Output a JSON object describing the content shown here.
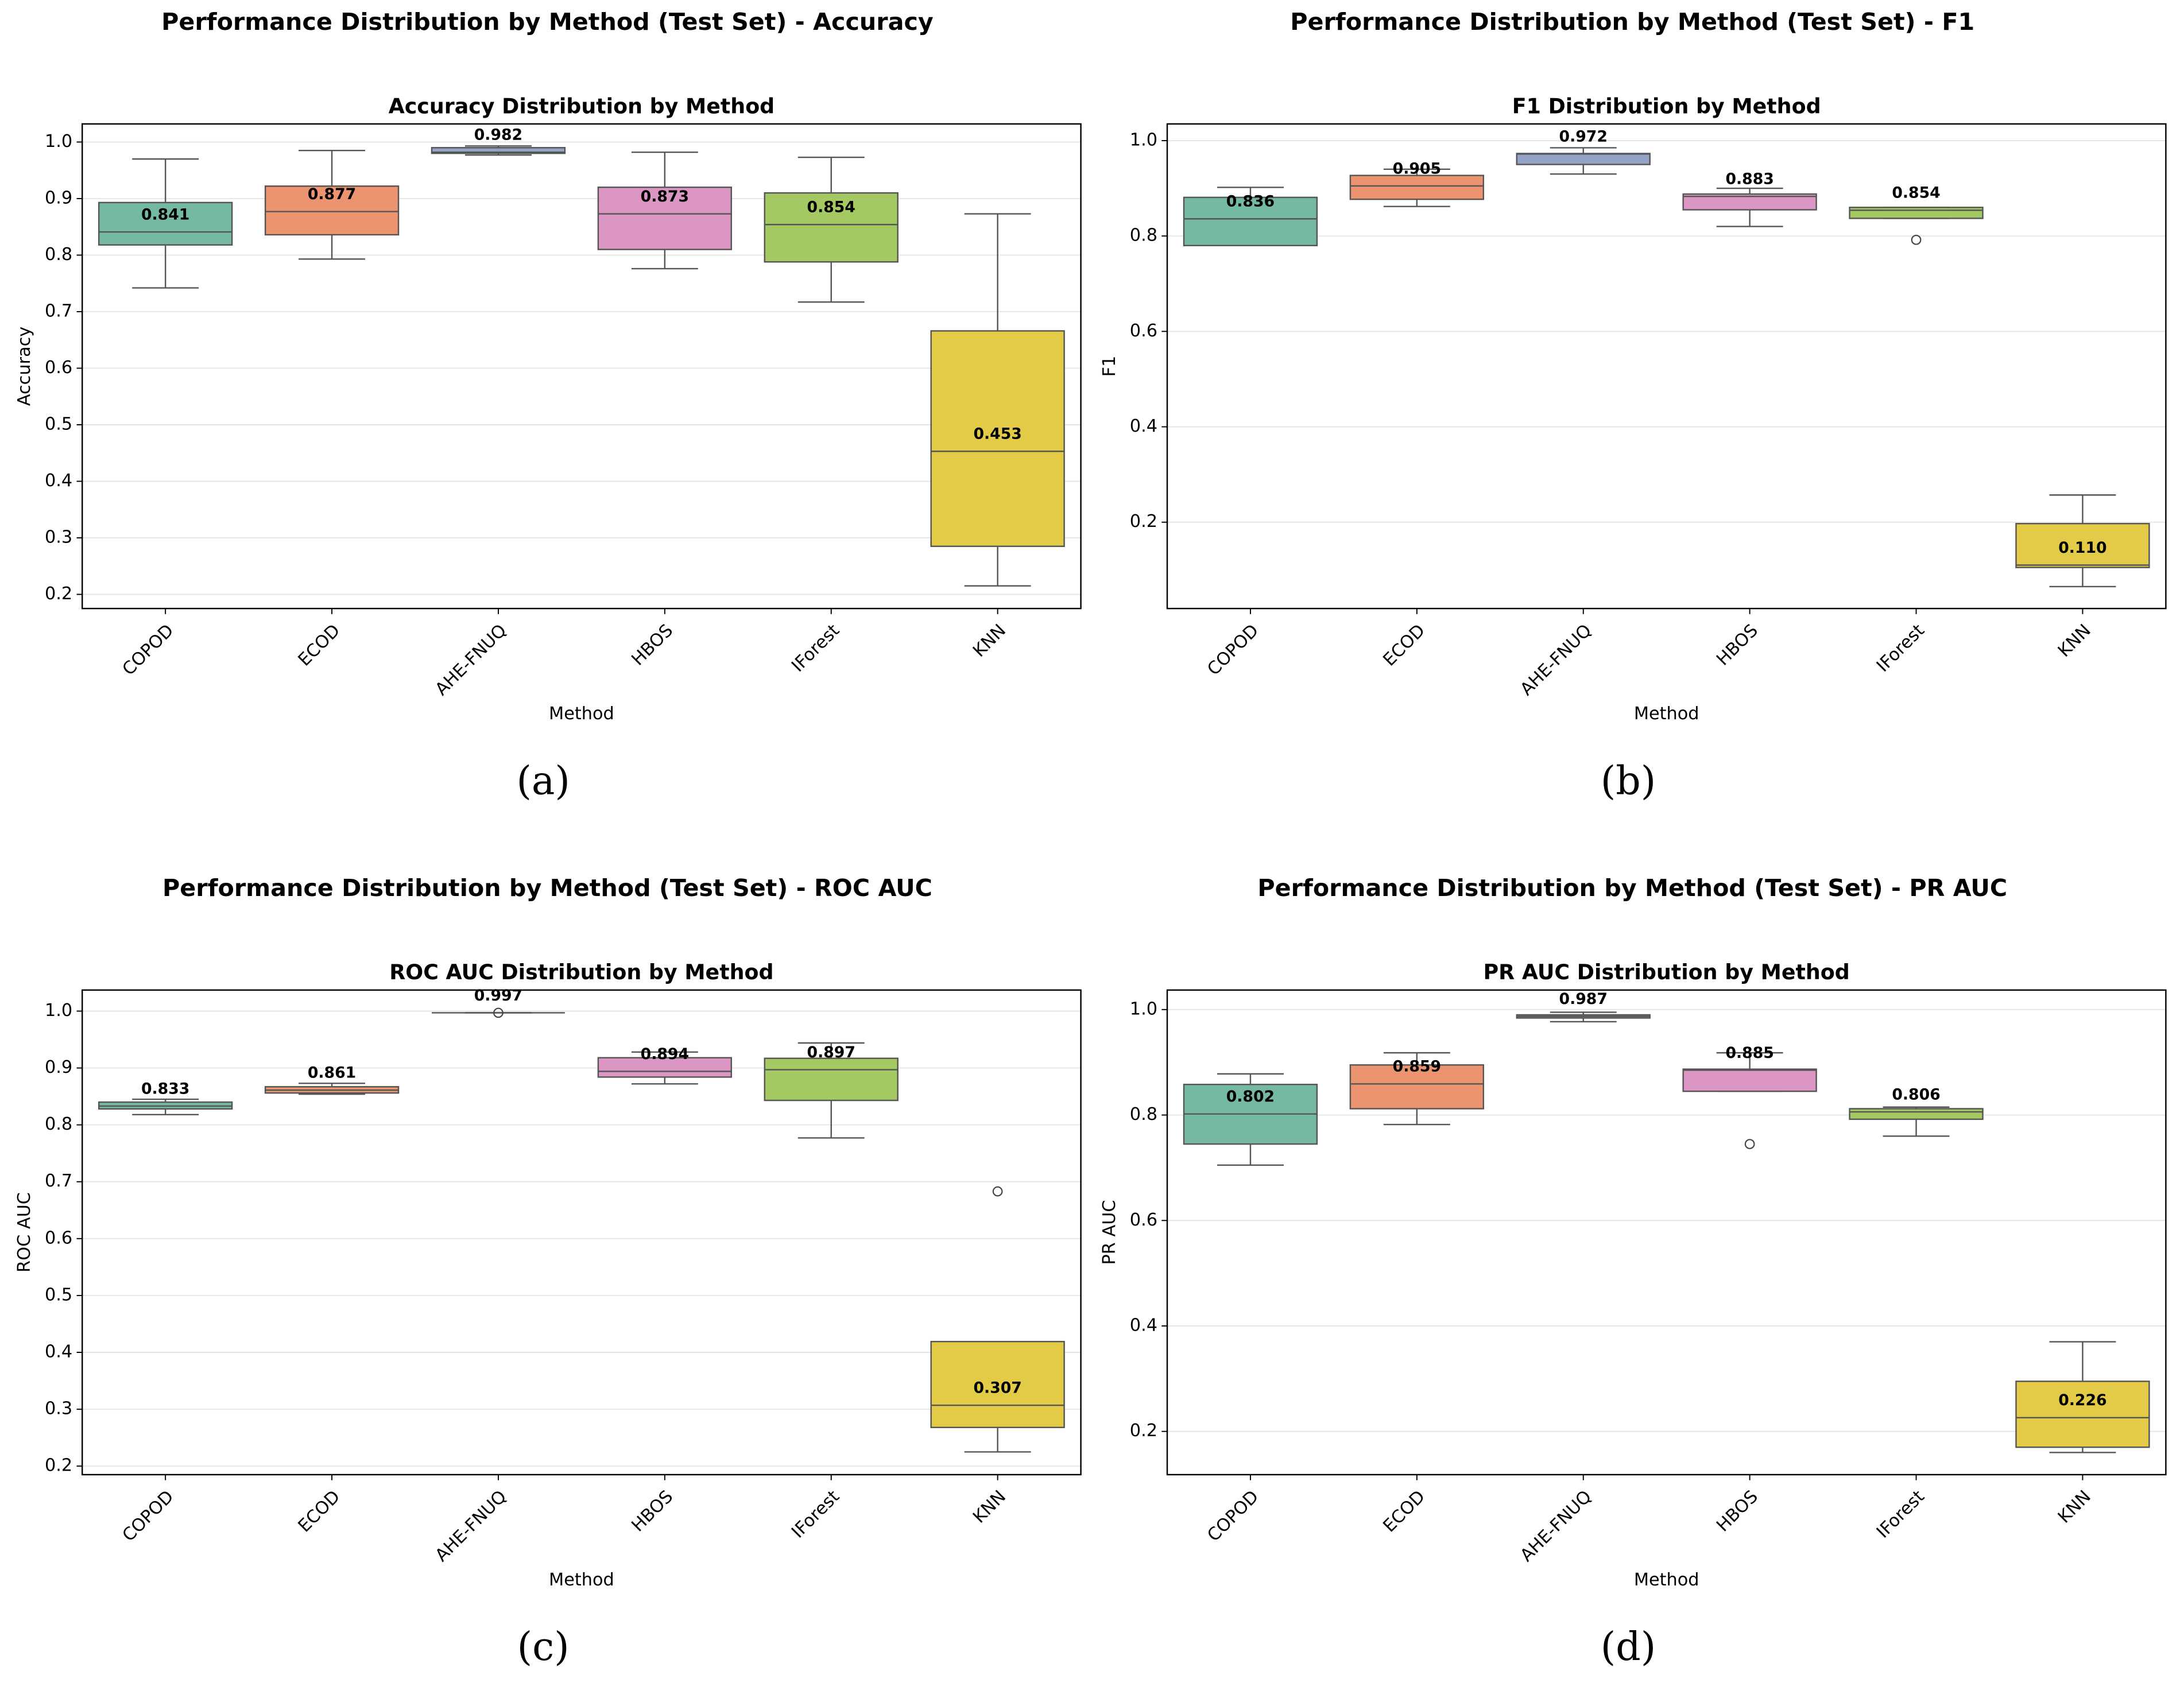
{
  "chart_data": [
    {
      "type": "box",
      "suptitle": "Performance Distribution by Method (Test Set) - Accuracy",
      "title": "Accuracy Distribution by Method",
      "xlabel": "Method",
      "ylabel": "Accuracy",
      "caption": "(a)",
      "categories": [
        "COPOD",
        "ECOD",
        "AHE-FNUQ",
        "HBOS",
        "IForest",
        "KNN"
      ],
      "colors": [
        "#74b9a0",
        "#ec9470",
        "#93a2c6",
        "#dc96c4",
        "#a4c862",
        "#e4cb47"
      ],
      "boxes": [
        {
          "whislo": 0.742,
          "q1": 0.818,
          "med": 0.841,
          "q3": 0.893,
          "whishi": 0.97,
          "fliers": []
        },
        {
          "whislo": 0.793,
          "q1": 0.836,
          "med": 0.877,
          "q3": 0.922,
          "whishi": 0.985,
          "fliers": []
        },
        {
          "whislo": 0.977,
          "q1": 0.98,
          "med": 0.982,
          "q3": 0.99,
          "whishi": 0.993,
          "fliers": []
        },
        {
          "whislo": 0.776,
          "q1": 0.81,
          "med": 0.873,
          "q3": 0.92,
          "whishi": 0.982,
          "fliers": []
        },
        {
          "whislo": 0.717,
          "q1": 0.788,
          "med": 0.854,
          "q3": 0.91,
          "whishi": 0.973,
          "fliers": []
        },
        {
          "whislo": 0.215,
          "q1": 0.285,
          "med": 0.453,
          "q3": 0.666,
          "whishi": 0.873,
          "fliers": []
        }
      ],
      "value_labels": [
        "0.841",
        "0.877",
        "0.982",
        "0.873",
        "0.854",
        "0.453"
      ],
      "ylim": [
        0.175,
        1.032
      ],
      "yticks": [
        0.2,
        0.3,
        0.4,
        0.5,
        0.6,
        0.7,
        0.8,
        0.9,
        {
          "value": 1,
          "label": "1.0"
        }
      ],
      "grid": true
    },
    {
      "type": "box",
      "suptitle": "Performance Distribution by Method (Test Set) - F1",
      "title": "F1 Distribution by Method",
      "xlabel": "Method",
      "ylabel": "F1",
      "caption": "(b)",
      "categories": [
        "COPOD",
        "ECOD",
        "AHE-FNUQ",
        "HBOS",
        "IForest",
        "KNN"
      ],
      "colors": [
        "#74b9a0",
        "#ec9470",
        "#93a2c6",
        "#dc96c4",
        "#a4c862",
        "#e4cb47"
      ],
      "boxes": [
        {
          "whislo": 0.78,
          "q1": 0.78,
          "med": 0.836,
          "q3": 0.881,
          "whishi": 0.902,
          "fliers": []
        },
        {
          "whislo": 0.862,
          "q1": 0.877,
          "med": 0.905,
          "q3": 0.927,
          "whishi": 0.94,
          "fliers": []
        },
        {
          "whislo": 0.93,
          "q1": 0.95,
          "med": 0.972,
          "q3": 0.973,
          "whishi": 0.985,
          "fliers": []
        },
        {
          "whislo": 0.82,
          "q1": 0.855,
          "med": 0.883,
          "q3": 0.888,
          "whishi": 0.9,
          "fliers": []
        },
        {
          "whislo": 0.837,
          "q1": 0.837,
          "med": 0.854,
          "q3": 0.86,
          "whishi": 0.86,
          "fliers": [
            0.792
          ]
        },
        {
          "whislo": 0.065,
          "q1": 0.105,
          "med": 0.11,
          "q3": 0.197,
          "whishi": 0.257,
          "fliers": []
        }
      ],
      "value_labels": [
        "0.836",
        "0.905",
        "0.972",
        "0.883",
        "0.854",
        "0.110"
      ],
      "ylim": [
        0.019,
        1.035
      ],
      "yticks": [
        0.2,
        0.4,
        0.6,
        0.8,
        {
          "value": 1,
          "label": "1.0"
        }
      ],
      "grid": true
    },
    {
      "type": "box",
      "suptitle": "Performance Distribution by Method (Test Set) - ROC AUC",
      "title": "ROC AUC Distribution by Method",
      "xlabel": "Method",
      "ylabel": "ROC AUC",
      "caption": "(c)",
      "categories": [
        "COPOD",
        "ECOD",
        "AHE-FNUQ",
        "HBOS",
        "IForest",
        "KNN"
      ],
      "colors": [
        "#74b9a0",
        "#ec9470",
        "#93a2c6",
        "#dc96c4",
        "#a4c862",
        "#e4cb47"
      ],
      "boxes": [
        {
          "whislo": 0.818,
          "q1": 0.828,
          "med": 0.833,
          "q3": 0.84,
          "whishi": 0.845,
          "fliers": []
        },
        {
          "whislo": 0.854,
          "q1": 0.856,
          "med": 0.861,
          "q3": 0.867,
          "whishi": 0.873,
          "fliers": []
        },
        {
          "whislo": 0.997,
          "q1": 0.997,
          "med": 0.997,
          "q3": 0.997,
          "whishi": 0.997,
          "fliers": [
            0.997
          ]
        },
        {
          "whislo": 0.872,
          "q1": 0.884,
          "med": 0.894,
          "q3": 0.918,
          "whishi": 0.928,
          "fliers": []
        },
        {
          "whislo": 0.777,
          "q1": 0.843,
          "med": 0.897,
          "q3": 0.917,
          "whishi": 0.944,
          "fliers": []
        },
        {
          "whislo": 0.225,
          "q1": 0.268,
          "med": 0.307,
          "q3": 0.419,
          "whishi": 0.419,
          "fliers": [
            0.683
          ]
        }
      ],
      "value_labels": [
        "0.833",
        "0.861",
        "0.997",
        "0.894",
        "0.897",
        "0.307"
      ],
      "ylim": [
        0.185,
        1.037
      ],
      "yticks": [
        0.2,
        0.3,
        0.4,
        0.5,
        0.6,
        0.7,
        0.8,
        0.9,
        {
          "value": 1,
          "label": "1.0"
        }
      ],
      "grid": true
    },
    {
      "type": "box",
      "suptitle": "Performance Distribution by Method (Test Set) - PR AUC",
      "title": "PR AUC Distribution by Method",
      "xlabel": "Method",
      "ylabel": "PR AUC",
      "caption": "(d)",
      "categories": [
        "COPOD",
        "ECOD",
        "AHE-FNUQ",
        "HBOS",
        "IForest",
        "KNN"
      ],
      "colors": [
        "#74b9a0",
        "#ec9470",
        "#93a2c6",
        "#dc96c4",
        "#a4c862",
        "#e4cb47"
      ],
      "boxes": [
        {
          "whislo": 0.705,
          "q1": 0.745,
          "med": 0.802,
          "q3": 0.858,
          "whishi": 0.878,
          "fliers": []
        },
        {
          "whislo": 0.782,
          "q1": 0.812,
          "med": 0.859,
          "q3": 0.895,
          "whishi": 0.918,
          "fliers": []
        },
        {
          "whislo": 0.977,
          "q1": 0.984,
          "med": 0.987,
          "q3": 0.99,
          "whishi": 0.995,
          "fliers": []
        },
        {
          "whislo": 0.845,
          "q1": 0.845,
          "med": 0.885,
          "q3": 0.887,
          "whishi": 0.918,
          "fliers": [
            0.745
          ]
        },
        {
          "whislo": 0.76,
          "q1": 0.792,
          "med": 0.806,
          "q3": 0.812,
          "whishi": 0.815,
          "fliers": []
        },
        {
          "whislo": 0.16,
          "q1": 0.17,
          "med": 0.226,
          "q3": 0.295,
          "whishi": 0.37,
          "fliers": []
        }
      ],
      "value_labels": [
        "0.802",
        "0.859",
        "0.987",
        "0.885",
        "0.806",
        "0.226"
      ],
      "ylim": [
        0.118,
        1.037
      ],
      "yticks": [
        0.2,
        0.4,
        0.6,
        0.8,
        {
          "value": 1,
          "label": "1.0"
        }
      ],
      "grid": true
    }
  ]
}
